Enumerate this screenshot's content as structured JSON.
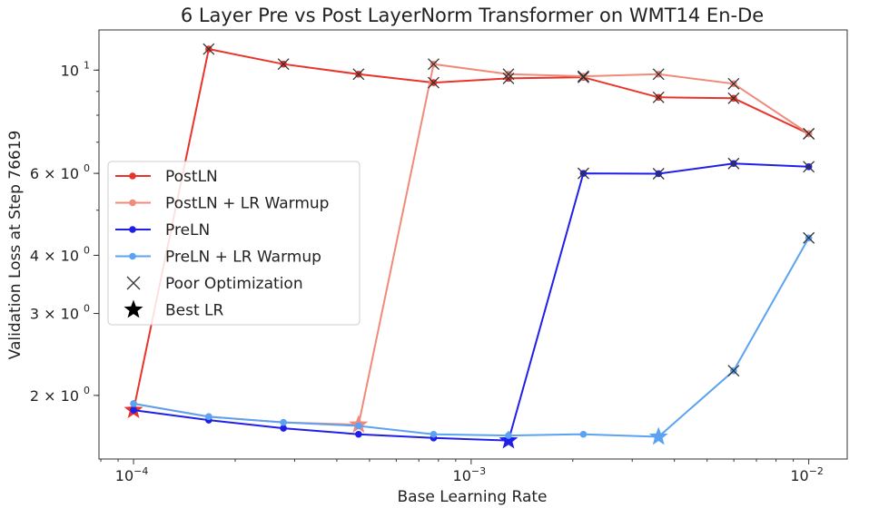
{
  "chart_data": {
    "type": "line",
    "title": "6 Layer Pre vs Post LayerNorm Transformer on WMT14 En-De",
    "xlabel": "Base Learning Rate",
    "ylabel": "Validation Loss at Step 76619",
    "xscale": "log",
    "yscale": "log",
    "xlim": [
      7.9e-05,
      0.013
    ],
    "ylim": [
      1.46,
      12.2
    ],
    "x_ticks": [
      {
        "value": 0.0001,
        "base": "10",
        "exp": "−4"
      },
      {
        "value": 0.001,
        "base": "10",
        "exp": "−3"
      },
      {
        "value": 0.01,
        "base": "10",
        "exp": "−2"
      }
    ],
    "y_ticks": [
      {
        "value": 10,
        "label": "10",
        "exp": "1"
      },
      {
        "value": 6,
        "label": "6 × 10",
        "exp": "0"
      },
      {
        "value": 4,
        "label": "4 × 10",
        "exp": "0"
      },
      {
        "value": 3,
        "label": "3 × 10",
        "exp": "0"
      },
      {
        "value": 2,
        "label": "2 × 10",
        "exp": "0"
      }
    ],
    "grid": false,
    "legend_position": "center-left",
    "x": [
      0.0001,
      0.000167,
      0.000278,
      0.000464,
      0.000774,
      0.00129,
      0.00215,
      0.00359,
      0.00599,
      0.01
    ],
    "series": [
      {
        "name": "PostLN",
        "color": "#e8342a",
        "values": [
          1.86,
          11.1,
          10.3,
          9.8,
          9.4,
          9.6,
          9.65,
          8.74,
          8.7,
          7.3
        ],
        "poor": [
          false,
          true,
          true,
          true,
          true,
          true,
          true,
          true,
          true,
          true
        ],
        "best_index": 0
      },
      {
        "name": "PostLN + LR Warmup",
        "color": "#f08a7a",
        "values": [
          1.92,
          1.8,
          1.75,
          1.73,
          10.3,
          9.8,
          9.7,
          9.8,
          9.35,
          7.3
        ],
        "poor": [
          false,
          false,
          false,
          false,
          true,
          true,
          true,
          true,
          true,
          true
        ],
        "best_index": 3
      },
      {
        "name": "PreLN",
        "color": "#1f1fe8",
        "values": [
          1.86,
          1.77,
          1.7,
          1.65,
          1.62,
          1.6,
          6.0,
          5.99,
          6.3,
          6.2
        ],
        "poor": [
          false,
          false,
          false,
          false,
          false,
          false,
          true,
          true,
          true,
          true
        ],
        "best_index": 5
      },
      {
        "name": "PreLN + LR Warmup",
        "color": "#5ba3f2",
        "values": [
          1.92,
          1.8,
          1.75,
          1.72,
          1.65,
          1.64,
          1.65,
          1.63,
          2.26,
          4.36
        ],
        "poor": [
          false,
          false,
          false,
          false,
          false,
          false,
          false,
          false,
          true,
          true
        ],
        "best_index": 7
      }
    ],
    "legend_extra": [
      {
        "name": "Poor Optimization",
        "marker": "x"
      },
      {
        "name": "Best LR",
        "marker": "star"
      }
    ]
  }
}
